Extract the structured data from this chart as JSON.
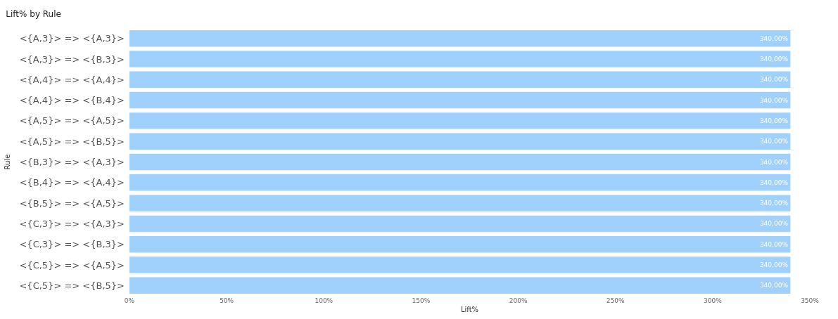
{
  "chart_data": {
    "type": "bar",
    "orientation": "horizontal",
    "title": "Lift% by Rule",
    "xlabel": "Lift%",
    "ylabel": "Rule",
    "categories": [
      "<{A,3}> => <{A,3}>",
      "<{A,3}> => <{B,3}>",
      "<{A,4}> => <{A,4}>",
      "<{A,4}> => <{B,4}>",
      "<{A,5}> => <{A,5}>",
      "<{A,5}> => <{B,5}>",
      "<{B,3}> => <{A,3}>",
      "<{B,4}> => <{A,4}>",
      "<{B,5}> => <{A,5}>",
      "<{C,3}> => <{A,3}>",
      "<{C,3}> => <{B,3}>",
      "<{C,5}> => <{A,5}>",
      "<{C,5}> => <{B,5}>"
    ],
    "values": [
      340,
      340,
      340,
      340,
      340,
      340,
      340,
      340,
      340,
      340,
      340,
      340,
      340
    ],
    "value_labels": [
      "340,00%",
      "340,00%",
      "340,00%",
      "340,00%",
      "340,00%",
      "340,00%",
      "340,00%",
      "340,00%",
      "340,00%",
      "340,00%",
      "340,00%",
      "340,00%",
      "340,00%"
    ],
    "color": "#a0d0fc",
    "xlim": [
      0,
      350
    ],
    "xticks": [
      {
        "value": 0,
        "label": "0%"
      },
      {
        "value": 50,
        "label": "50%"
      },
      {
        "value": 100,
        "label": "100%"
      },
      {
        "value": 150,
        "label": "150%"
      },
      {
        "value": 200,
        "label": "200%"
      },
      {
        "value": 250,
        "label": "250%"
      },
      {
        "value": 300,
        "label": "300%"
      },
      {
        "value": 350,
        "label": "350%"
      }
    ]
  }
}
